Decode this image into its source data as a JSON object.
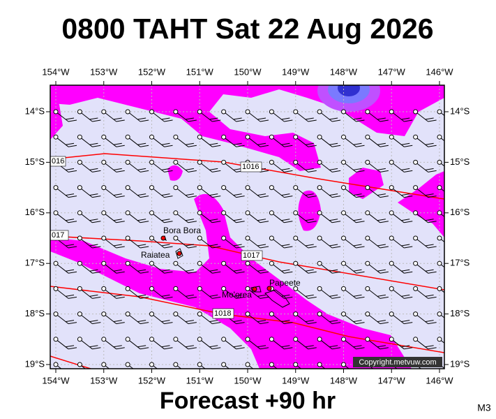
{
  "title": "0800 TAHT Sat 22 Aug 2026",
  "footer": {
    "forecast": "Forecast +90 hr",
    "code": "M3"
  },
  "copyright": "Copyright.metvuw.com",
  "longitude_labels": [
    "154°W",
    "153°W",
    "152°W",
    "151°W",
    "150°W",
    "149°W",
    "148°W",
    "147°W",
    "146°W"
  ],
  "latitude_labels": [
    "14°S",
    "15°S",
    "16°S",
    "17°S",
    "18°S",
    "19°S"
  ],
  "places": [
    "Bora Bora",
    "Raiatea",
    "Mo'orea",
    "Papeete"
  ],
  "isobar_labels": [
    "016",
    "1016",
    "017",
    "1017",
    "1018"
  ]
}
